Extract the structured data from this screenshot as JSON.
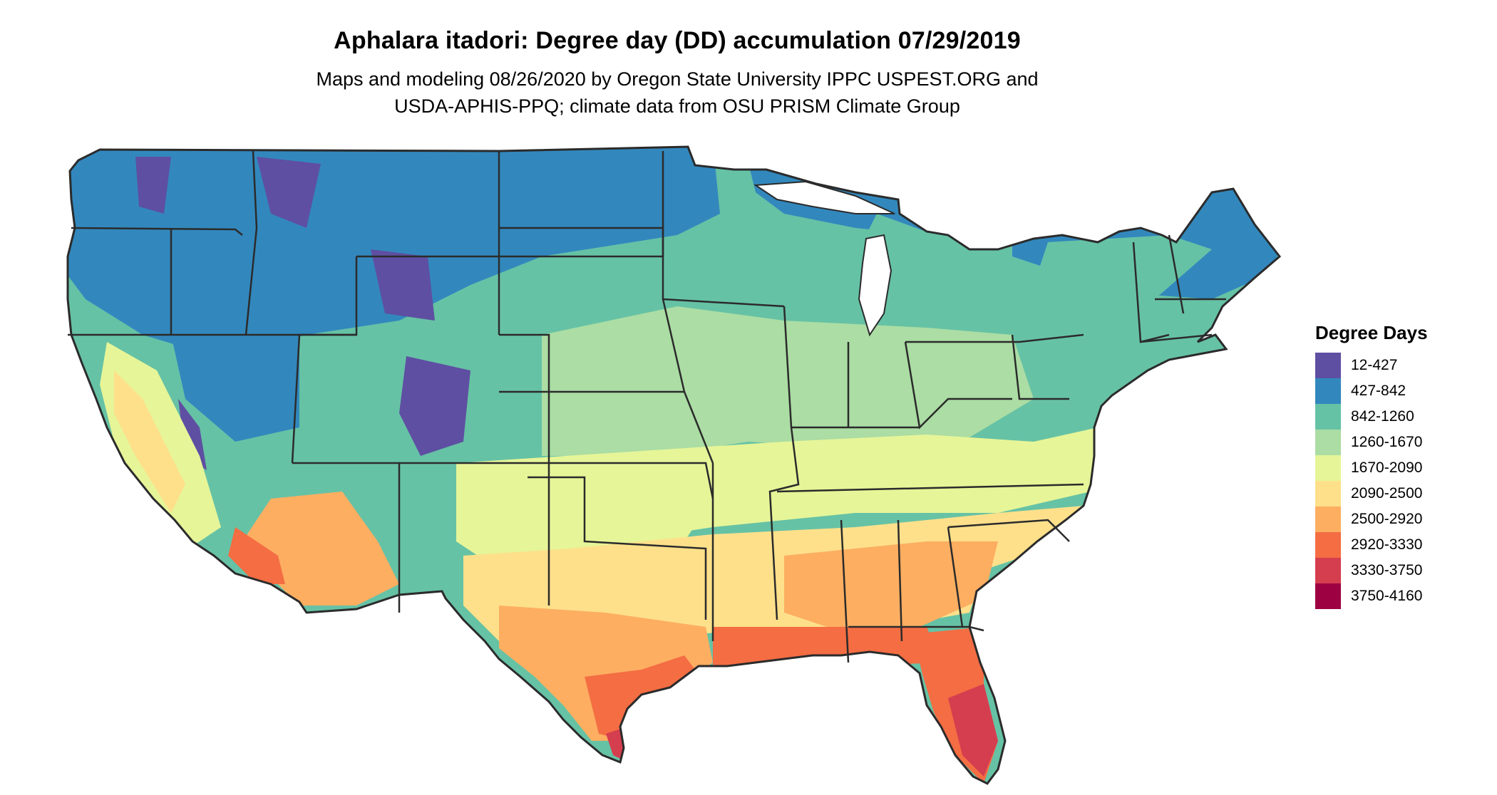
{
  "title": "Aphalara itadori: Degree day (DD) accumulation 07/29/2019",
  "subtitle_line1": "Maps and modeling 08/26/2020 by Oregon State University IPPC USPEST.ORG and",
  "subtitle_line2": "USDA-APHIS-PPQ; climate data from OSU PRISM Climate Group",
  "legend": {
    "title": "Degree Days",
    "items": [
      {
        "label": "12-427",
        "color": "#5E4FA2"
      },
      {
        "label": "427-842",
        "color": "#3288BD"
      },
      {
        "label": "842-1260",
        "color": "#66C2A5"
      },
      {
        "label": "1260-1670",
        "color": "#ABDDA4"
      },
      {
        "label": "1670-2090",
        "color": "#E6F598"
      },
      {
        "label": "2090-2500",
        "color": "#FEE08B"
      },
      {
        "label": "2500-2920",
        "color": "#FDAE61"
      },
      {
        "label": "2920-3330",
        "color": "#F46D43"
      },
      {
        "label": "3330-3750",
        "color": "#D53E4F"
      },
      {
        "label": "3750-4160",
        "color": "#9E0142"
      }
    ]
  }
}
